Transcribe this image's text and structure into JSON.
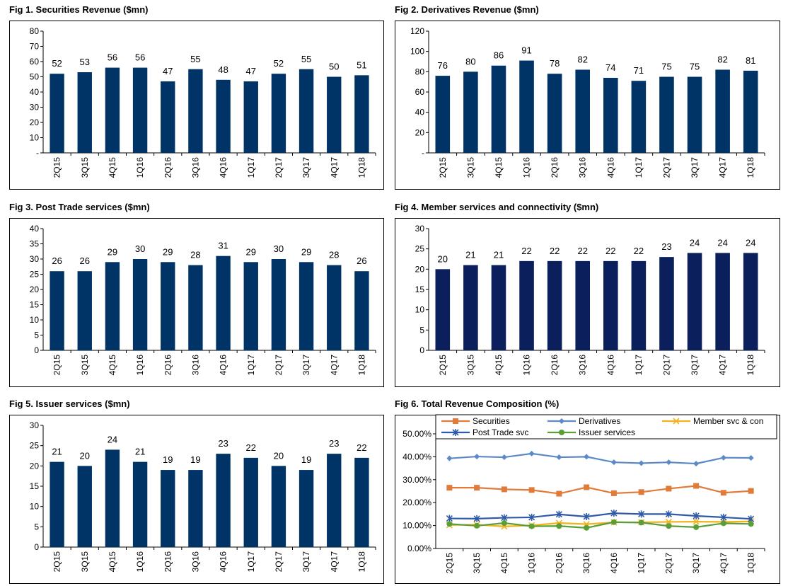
{
  "chart_data": [
    {
      "type": "bar",
      "title": "Fig 1. Securities Revenue ($mn)",
      "categories": [
        "2Q15",
        "3Q15",
        "4Q15",
        "1Q16",
        "2Q16",
        "3Q16",
        "4Q16",
        "1Q17",
        "2Q17",
        "3Q17",
        "4Q17",
        "1Q18"
      ],
      "values": [
        52,
        53,
        56,
        56,
        47,
        55,
        48,
        47,
        52,
        55,
        50,
        51
      ],
      "ylim": [
        0,
        80
      ],
      "yticks": [
        "-",
        "10",
        "20",
        "30",
        "40",
        "50",
        "60",
        "70",
        "80"
      ],
      "bar_color": "#003366",
      "grid": false,
      "xlabel": "",
      "ylabel": ""
    },
    {
      "type": "bar",
      "title": "Fig 2. Derivatives Revenue ($mn)",
      "categories": [
        "2Q15",
        "3Q15",
        "4Q15",
        "1Q16",
        "2Q16",
        "3Q16",
        "4Q16",
        "1Q17",
        "2Q17",
        "3Q17",
        "4Q17",
        "1Q18"
      ],
      "values": [
        76,
        80,
        86,
        91,
        78,
        82,
        74,
        71,
        75,
        75,
        82,
        81
      ],
      "ylim": [
        0,
        120
      ],
      "yticks": [
        "-",
        "20",
        "40",
        "60",
        "80",
        "100",
        "120"
      ],
      "bar_color": "#003366",
      "grid": false,
      "xlabel": "",
      "ylabel": ""
    },
    {
      "type": "bar",
      "title": "Fig 3. Post Trade services ($mn)",
      "categories": [
        "2Q15",
        "3Q15",
        "4Q15",
        "1Q16",
        "2Q16",
        "3Q16",
        "4Q16",
        "1Q17",
        "2Q17",
        "3Q17",
        "4Q17",
        "1Q18"
      ],
      "values": [
        26,
        26,
        29,
        30,
        29,
        28,
        31,
        29,
        30,
        29,
        28,
        26
      ],
      "ylim": [
        0,
        40
      ],
      "yticks": [
        "0",
        "5",
        "10",
        "15",
        "20",
        "25",
        "30",
        "35",
        "40"
      ],
      "bar_color": "#003366",
      "grid": false,
      "xlabel": "",
      "ylabel": ""
    },
    {
      "type": "bar",
      "title": "Fig 4. Member services and connectivity ($mn)",
      "categories": [
        "2Q15",
        "3Q15",
        "4Q15",
        "1Q16",
        "2Q16",
        "3Q16",
        "4Q16",
        "1Q17",
        "2Q17",
        "3Q17",
        "4Q17",
        "1Q18"
      ],
      "values": [
        20,
        21,
        21,
        22,
        22,
        22,
        22,
        22,
        23,
        24,
        24,
        24
      ],
      "ylim": [
        0,
        30
      ],
      "yticks": [
        "0",
        "5",
        "10",
        "15",
        "20",
        "25",
        "30"
      ],
      "bar_color": "#0a1f5c",
      "grid": false,
      "xlabel": "",
      "ylabel": ""
    },
    {
      "type": "bar",
      "title": "Fig 5. Issuer services ($mn)",
      "categories": [
        "2Q15",
        "3Q15",
        "4Q15",
        "1Q16",
        "2Q16",
        "3Q16",
        "4Q16",
        "1Q17",
        "2Q17",
        "3Q17",
        "4Q17",
        "1Q18"
      ],
      "values": [
        21,
        20,
        24,
        21,
        19,
        19,
        23,
        22,
        20,
        19,
        23,
        22
      ],
      "ylim": [
        0,
        30
      ],
      "yticks": [
        "0",
        "5",
        "10",
        "15",
        "20",
        "25",
        "30"
      ],
      "bar_color": "#003366",
      "grid": false,
      "xlabel": "",
      "ylabel": ""
    },
    {
      "type": "line",
      "title": "Fig 6. Total Revenue Composition (%)",
      "categories": [
        "2Q15",
        "3Q15",
        "4Q15",
        "1Q16",
        "2Q16",
        "3Q16",
        "4Q16",
        "1Q17",
        "2Q17",
        "3Q17",
        "4Q17",
        "1Q18"
      ],
      "ylim": [
        0,
        50
      ],
      "yticks": [
        "0.00%",
        "10.00%",
        "20.00%",
        "30.00%",
        "40.00%",
        "50.00%"
      ],
      "legend_position": "top",
      "grid": false,
      "xlabel": "",
      "ylabel": "",
      "series": [
        {
          "name": "Securities",
          "color": "#e07b39",
          "marker": "square",
          "values": [
            26.5,
            26.5,
            25.8,
            25.5,
            23.9,
            26.7,
            24.1,
            24.6,
            26.1,
            27.3,
            24.3,
            25.1
          ]
        },
        {
          "name": "Derivatives",
          "color": "#5b8ac6",
          "marker": "diamond",
          "values": [
            39.3,
            40.1,
            39.8,
            41.4,
            39.8,
            40.0,
            37.6,
            37.2,
            37.6,
            37.0,
            39.6,
            39.5
          ]
        },
        {
          "name": "Member svc & con",
          "color": "#f2b21b",
          "marker": "x",
          "values": [
            10.2,
            10.4,
            9.6,
            10.1,
            11.1,
            10.6,
            11.4,
            11.4,
            11.6,
            11.7,
            11.6,
            11.8
          ]
        },
        {
          "name": "Post Trade svc",
          "color": "#2f5aa8",
          "marker": "star",
          "values": [
            13.1,
            13.0,
            13.4,
            13.6,
            14.9,
            13.9,
            15.4,
            15.0,
            15.0,
            14.2,
            13.6,
            12.9
          ]
        },
        {
          "name": "Issuer services",
          "color": "#5a9e3a",
          "marker": "circle",
          "values": [
            10.7,
            9.9,
            11.1,
            9.7,
            9.8,
            9.0,
            11.5,
            11.3,
            9.8,
            9.3,
            11.0,
            10.7
          ]
        }
      ]
    }
  ]
}
